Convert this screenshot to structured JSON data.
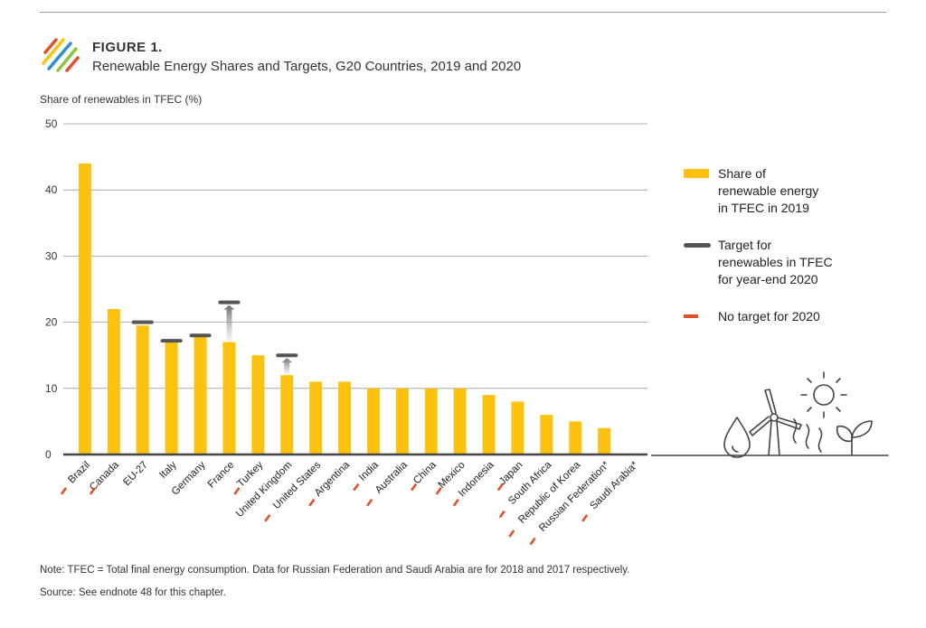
{
  "header": {
    "figure_label": "FIGURE 1.",
    "title": "Renewable Energy Shares and Targets, G20 Countries, 2019 and 2020"
  },
  "colors": {
    "bar": "#FDC20F",
    "target": "#555555",
    "no_target": "#E2502A",
    "grid": "#999999",
    "axis": "#444444"
  },
  "chart_data": {
    "type": "bar",
    "ylabel": "Share of renewables in TFEC (%)",
    "ylim": [
      0,
      50
    ],
    "yticks": [
      0,
      10,
      20,
      30,
      40,
      50
    ],
    "grid": true,
    "legend_position": "right",
    "categories": [
      "Brazil",
      "Canada",
      "EU-27",
      "Italy",
      "Germany",
      "France",
      "Turkey",
      "United Kingdom",
      "United States",
      "Argentina",
      "India",
      "Australia",
      "China",
      "Mexico",
      "Indonesia",
      "Japan",
      "South Africa",
      "Republic of Korea",
      "Russian Federation*",
      "Saudi Arabia*"
    ],
    "series": [
      {
        "name": "Share of renewable energy in TFEC in 2019",
        "values": [
          44,
          22,
          19.5,
          17,
          17.8,
          17,
          15,
          12,
          11,
          11,
          10,
          10,
          10,
          10,
          9,
          8,
          6,
          5,
          4,
          0
        ]
      },
      {
        "name": "Target for renewables in TFEC for year-end 2020",
        "values": [
          null,
          null,
          20,
          17.2,
          18,
          23,
          null,
          15,
          null,
          null,
          null,
          null,
          null,
          null,
          null,
          null,
          null,
          null,
          null,
          null
        ]
      }
    ],
    "no_target": [
      true,
      true,
      false,
      false,
      false,
      false,
      true,
      false,
      true,
      true,
      true,
      true,
      true,
      true,
      true,
      true,
      true,
      true,
      true,
      true
    ],
    "legend": [
      {
        "key": "bar",
        "label_lines": [
          "Share of",
          "renewable energy",
          "in TFEC in 2019"
        ]
      },
      {
        "key": "target",
        "label_lines": [
          "Target for",
          "renewables in TFEC",
          "for year-end 2020"
        ]
      },
      {
        "key": "no_target",
        "label_lines": [
          "No target for 2020"
        ]
      }
    ]
  },
  "footer": {
    "note": "Note: TFEC = Total final energy consumption. Data for Russian Federation and Saudi Arabia are for 2018 and 2017 respectively.",
    "source": "Source: See endnote 48 for this chapter."
  }
}
